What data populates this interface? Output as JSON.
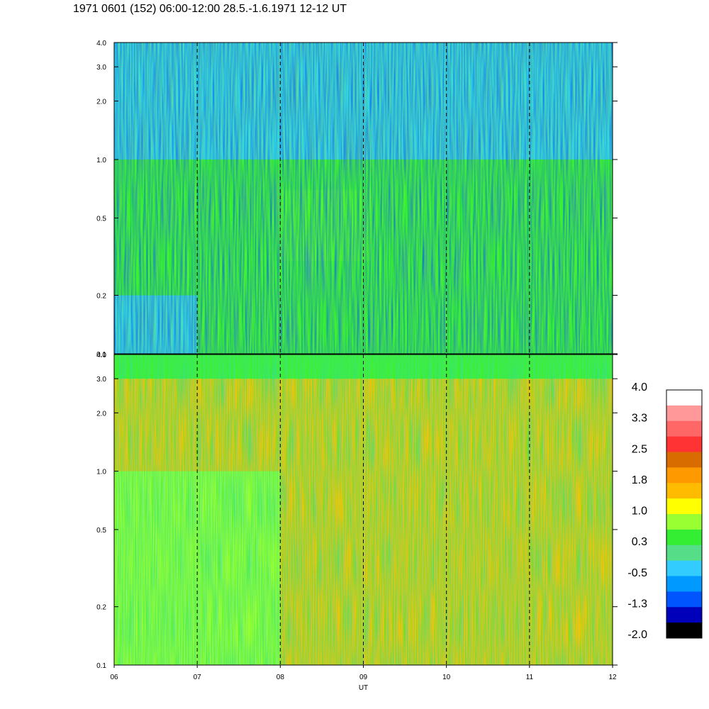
{
  "title": "1971 0601 (152) 06:00-12:00 28.5.-1.6.1971  12-12 UT",
  "chart_data": [
    {
      "type": "heatmap",
      "panel": "upper",
      "xlabel": "",
      "ylabel": "",
      "y_scale": "log",
      "ylim": [
        0.1,
        4.0
      ],
      "xlim": [
        "06",
        "12"
      ],
      "y_ticks": [
        "0.1",
        "0.2",
        "0.5",
        "1.0",
        "2.0",
        "3.0",
        "4.0"
      ],
      "x_ticks": [
        "06",
        "07",
        "08",
        "09",
        "10",
        "11",
        "12"
      ],
      "dashed_hour_lines": [
        "07",
        "08",
        "09",
        "10",
        "11"
      ],
      "dominant_levels": [
        {
          "freq_range": [
            0.1,
            0.2
          ],
          "hour_range": [
            "06",
            "07"
          ],
          "level": -0.5
        },
        {
          "freq_range": [
            0.1,
            0.3
          ],
          "hour_range": [
            "08",
            "12"
          ],
          "level": 0.3
        },
        {
          "freq_range": [
            0.3,
            0.7
          ],
          "hour_range": [
            "08",
            "09.1"
          ],
          "level": 1.0
        },
        {
          "freq_range": [
            0.2,
            1.0
          ],
          "hour_range": [
            "06",
            "12"
          ],
          "level": 0.3
        },
        {
          "freq_range": [
            1.0,
            4.0
          ],
          "hour_range": [
            "06",
            "12"
          ],
          "level": -0.5
        }
      ]
    },
    {
      "type": "heatmap",
      "panel": "lower",
      "xlabel": "UT",
      "ylabel": "",
      "y_scale": "log",
      "ylim": [
        0.1,
        4.0
      ],
      "xlim": [
        "06",
        "12"
      ],
      "y_ticks": [
        "0.1",
        "0.2",
        "0.5",
        "1.0",
        "2.0",
        "3.0",
        "4.0"
      ],
      "x_ticks": [
        "06",
        "07",
        "08",
        "09",
        "10",
        "11",
        "12"
      ],
      "dashed_hour_lines": [
        "07",
        "08",
        "09",
        "10",
        "11"
      ],
      "dominant_levels": [
        {
          "freq_range": [
            0.1,
            0.4
          ],
          "hour_range": [
            "06",
            "08"
          ],
          "level": 1.0
        },
        {
          "freq_range": [
            0.1,
            1.0
          ],
          "hour_range": [
            "08",
            "12"
          ],
          "level": 1.8
        },
        {
          "freq_range": [
            1.0,
            3.0
          ],
          "hour_range": [
            "06",
            "12"
          ],
          "level": 1.8
        },
        {
          "freq_range": [
            3.0,
            4.0
          ],
          "hour_range": [
            "06",
            "12"
          ],
          "level": 0.6
        }
      ]
    }
  ],
  "colorbar": {
    "labels": [
      "4.0",
      "3.3",
      "2.5",
      "1.8",
      "1.0",
      "0.3",
      "-0.5",
      "-1.3",
      "-2.0"
    ],
    "colors": [
      "#ffffff",
      "#ff9999",
      "#ff6666",
      "#ff3333",
      "#d96c00",
      "#ff9900",
      "#ffbb00",
      "#ffff00",
      "#99ff33",
      "#33ee33",
      "#55dd88",
      "#33ccff",
      "#0099ff",
      "#0055ff",
      "#0000bb",
      "#000000"
    ]
  }
}
